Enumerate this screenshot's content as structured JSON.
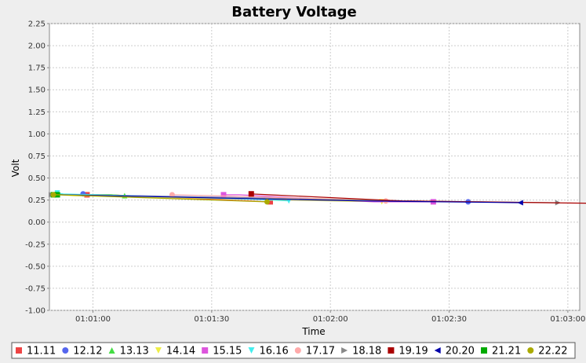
{
  "chart_data": {
    "type": "line",
    "title": "Battery Voltage",
    "xlabel": "Time",
    "ylabel": "Volt",
    "x_ticks": [
      "01:01:00",
      "01:01:30",
      "01:02:00",
      "01:02:30",
      "01:03:00"
    ],
    "x_tick_seconds": [
      60,
      90,
      120,
      150,
      180
    ],
    "xlim_seconds": [
      49,
      183
    ],
    "ylim": [
      -1.0,
      2.25
    ],
    "y_ticks": [
      -1.0,
      -0.75,
      -0.5,
      -0.25,
      0.0,
      0.25,
      0.5,
      0.75,
      1.0,
      1.25,
      1.5,
      1.75,
      2.0,
      2.25
    ],
    "grid": true,
    "legend_position": "bottom",
    "series": [
      {
        "name": "11.11",
        "color": "#ee4444",
        "marker": "square",
        "points": [
          [
            58.5,
            0.31
          ],
          [
            58.8,
            0.31
          ],
          [
            64.0,
            0.31
          ],
          [
            104.8,
            0.23
          ]
        ]
      },
      {
        "name": "12.12",
        "color": "#5566ee",
        "marker": "circle",
        "points": [
          [
            57.5,
            0.32
          ],
          [
            60.0,
            0.31
          ],
          [
            152.0,
            0.23
          ],
          [
            154.8,
            0.23
          ]
        ]
      },
      {
        "name": "13.13",
        "color": "#44dd44",
        "marker": "triangle-up",
        "points": [
          [
            50.5,
            0.32
          ],
          [
            55.0,
            0.31
          ],
          [
            64.5,
            0.31
          ],
          [
            68.0,
            0.3
          ]
        ]
      },
      {
        "name": "14.14",
        "color": "#eeee44",
        "marker": "triangle-down",
        "points": [
          [
            51.0,
            0.31
          ],
          [
            55.0,
            0.3
          ],
          [
            120.0,
            0.24
          ],
          [
            133.0,
            0.23
          ]
        ]
      },
      {
        "name": "15.15",
        "color": "#dd55dd",
        "marker": "square",
        "points": [
          [
            93.0,
            0.31
          ],
          [
            97.0,
            0.31
          ],
          [
            131.0,
            0.23
          ],
          [
            146.0,
            0.23
          ]
        ]
      },
      {
        "name": "16.16",
        "color": "#44eeee",
        "marker": "triangle-down",
        "points": [
          [
            51.0,
            0.33
          ],
          [
            52.5,
            0.32
          ],
          [
            100.0,
            0.26
          ],
          [
            109.5,
            0.24
          ]
        ]
      },
      {
        "name": "17.17",
        "color": "#ffaaaa",
        "marker": "circle",
        "points": [
          [
            80.0,
            0.31
          ],
          [
            90.0,
            0.3
          ],
          [
            130.0,
            0.25
          ],
          [
            134.0,
            0.24
          ]
        ]
      },
      {
        "name": "18.18",
        "color": "#888888",
        "marker": "triangle-right",
        "points": [
          [
            49.5,
            0.31
          ],
          [
            52.0,
            0.31
          ],
          [
            140.0,
            0.24
          ],
          [
            177.5,
            0.22
          ]
        ]
      },
      {
        "name": "19.19",
        "color": "#aa0000",
        "marker": "square",
        "points": [
          [
            100.0,
            0.32
          ],
          [
            104.5,
            0.31
          ],
          [
            138.0,
            0.24
          ],
          [
            192.0,
            0.21
          ]
        ]
      },
      {
        "name": "20.20",
        "color": "#0000aa",
        "marker": "triangle-left",
        "points": [
          [
            50.0,
            0.31
          ],
          [
            51.5,
            0.31
          ],
          [
            127.0,
            0.24
          ],
          [
            168.0,
            0.22
          ]
        ]
      },
      {
        "name": "21.21",
        "color": "#00aa00",
        "marker": "square",
        "points": [
          [
            50.0,
            0.31
          ],
          [
            51.0,
            0.31
          ]
        ]
      },
      {
        "name": "22.22",
        "color": "#aaaa00",
        "marker": "circle",
        "points": [
          [
            50.0,
            0.31
          ],
          [
            51.0,
            0.31
          ],
          [
            104.0,
            0.23
          ]
        ]
      }
    ]
  }
}
